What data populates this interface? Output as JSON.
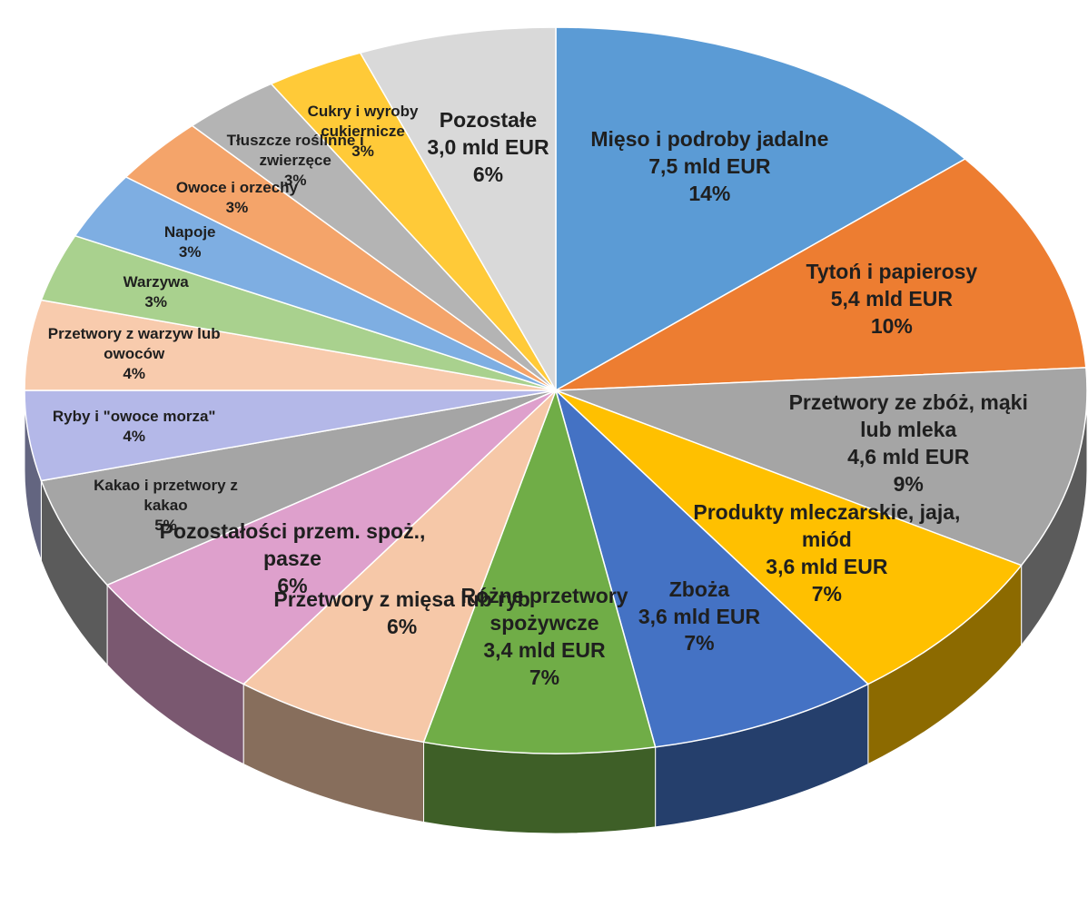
{
  "chart_data": {
    "type": "pie",
    "categories": [
      "Mięso i podroby jadalne",
      "Tytoń i papierosy",
      "Przetwory ze zbóż, mąki lub mleka",
      "Produkty mleczarskie, jaja, miód",
      "Zboża",
      "Różne przetwory spożywcze",
      "Przetwory z mięsa lub ryb",
      "Pozostałości przem. spoż., pasze",
      "Kakao i przetwory z kakao",
      "Ryby i \"owoce morza\"",
      "Przetwory z warzyw lub owoców",
      "Warzywa",
      "Napoje",
      "Owoce i orzechy",
      "Tłuszcze roślinne i zwierzęce",
      "Cukry i wyroby cukiernicze",
      "Pozostałe"
    ],
    "values": [
      14,
      10,
      9,
      7,
      7,
      7,
      6,
      6,
      5,
      4,
      4,
      3,
      3,
      3,
      3,
      3,
      6
    ],
    "value_labels": [
      "14%",
      "10%",
      "9%",
      "7%",
      "7%",
      "7%",
      "6%",
      "6%",
      "5%",
      "4%",
      "4%",
      "3%",
      "3%",
      "3%",
      "3%",
      "3%",
      "6%"
    ],
    "amount_labels": [
      "7,5 mld EUR",
      "5,4 mld EUR",
      "4,6 mld EUR",
      "3,6 mld EUR",
      "3,6 mld EUR",
      "3,4 mld EUR",
      null,
      null,
      null,
      null,
      null,
      null,
      null,
      null,
      null,
      null,
      "3,0 mld EUR"
    ],
    "colors": [
      "#5b9bd5",
      "#ed7d31",
      "#a5a5a5",
      "#ffc000",
      "#4472c4",
      "#70ad47",
      "#f6c8a8",
      "#dea0cc",
      "#a5a5a5",
      "#b4b8e8",
      "#f8cbad",
      "#a9d18e",
      "#7eaee2",
      "#f4a46a",
      "#b4b4b4",
      "#ffca38",
      "#d9d9d9"
    ]
  }
}
